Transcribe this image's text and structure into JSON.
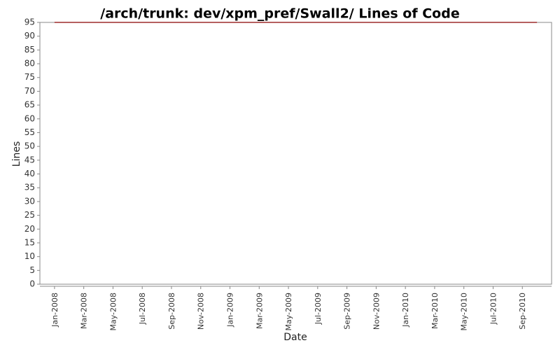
{
  "chart_data": {
    "type": "line",
    "title": "/arch/trunk: dev/xpm_pref/Swall2/ Lines of Code",
    "x_label": "Date",
    "y_label": "Lines",
    "x": [
      "Jan-2008",
      "Oct-2010"
    ],
    "series": [
      {
        "name": "Lines",
        "color": "#8b0000",
        "values": [
          95,
          95
        ]
      }
    ],
    "xlim": [
      "Dec-2007",
      "Nov-2010"
    ],
    "xticks": [
      "Jan-2008",
      "Mar-2008",
      "May-2008",
      "Jul-2008",
      "Sep-2008",
      "Nov-2008",
      "Jan-2009",
      "Mar-2009",
      "May-2009",
      "Jul-2009",
      "Sep-2009",
      "Nov-2009",
      "Jan-2010",
      "Mar-2010",
      "May-2010",
      "Jul-2010",
      "Sep-2010"
    ],
    "ylim": [
      0,
      95
    ],
    "yticks": [
      0,
      5,
      10,
      15,
      20,
      25,
      30,
      35,
      40,
      45,
      50,
      55,
      60,
      65,
      70,
      75,
      80,
      85,
      90,
      95
    ],
    "grid": false
  }
}
